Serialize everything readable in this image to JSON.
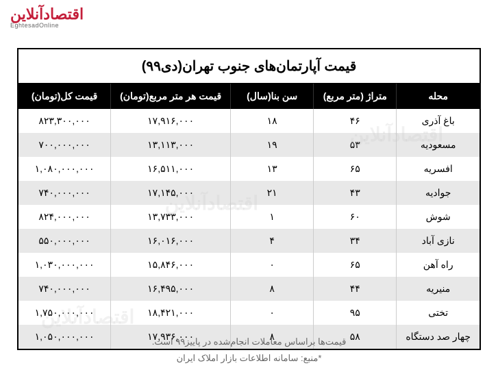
{
  "logo": {
    "main": "اقتصادآنلاین",
    "sub": "EghtesadOnline"
  },
  "watermark": "اقتصادآنلاین",
  "table": {
    "title": "قیمت آپارتمان‌های جنوب تهران(دی۹۹)",
    "columns": [
      "محله",
      "متراژ (متر مربع)",
      "سن بنا(سال)",
      "قیمت هر متر مربع(تومان)",
      "قیمت کل(تومان)"
    ],
    "rows": [
      [
        "باغ آذری",
        "۴۶",
        "۱۸",
        "۱۷,۹۱۶,۰۰۰",
        "۸۲۳,۳۰۰,۰۰۰"
      ],
      [
        "مسعودیه",
        "۵۳",
        "۱۹",
        "۱۳,۱۱۳,۰۰۰",
        "۷۰۰,۰۰۰,۰۰۰"
      ],
      [
        "افسریه",
        "۶۵",
        "۱۳",
        "۱۶,۵۱۱,۰۰۰",
        "۱,۰۸۰,۰۰۰,۰۰۰"
      ],
      [
        "جوادیه",
        "۴۳",
        "۲۱",
        "۱۷,۱۴۵,۰۰۰",
        "۷۴۰,۰۰۰,۰۰۰"
      ],
      [
        "شوش",
        "۶۰",
        "۱",
        "۱۳,۷۳۳,۰۰۰",
        "۸۲۴,۰۰۰,۰۰۰"
      ],
      [
        "نازی آباد",
        "۳۴",
        "۴",
        "۱۶,۰۱۶,۰۰۰",
        "۵۵۰,۰۰۰,۰۰۰"
      ],
      [
        "راه آهن",
        "۶۵",
        "۰",
        "۱۵,۸۴۶,۰۰۰",
        "۱,۰۳۰,۰۰۰,۰۰۰"
      ],
      [
        "منیریه",
        "۴۴",
        "۸",
        "۱۶,۴۹۵,۰۰۰",
        "۷۴۰,۰۰۰,۰۰۰"
      ],
      [
        "تختی",
        "۹۵",
        "۰",
        "۱۸,۴۲۱,۰۰۰",
        "۱,۷۵۰,۰۰۰,۰۰۰"
      ],
      [
        "چهار صد دستگاه",
        "۵۸",
        "۸",
        "۱۷,۹۳۶,۰۰۰",
        "۱,۰۵۰,۰۰۰,۰۰۰"
      ]
    ]
  },
  "footer": {
    "note1": "قیمت‌ها براساس معاملات انجام‌شده در پاییز۹۹ است.",
    "note2": "*منبع: سامانه اطلاعات بازار املاک ایران"
  },
  "styling": {
    "header_bg": "#000000",
    "header_text": "#ffffff",
    "row_even_bg": "#e8e8e8",
    "row_odd_bg": "#ffffff",
    "border_color": "#000000",
    "logo_color": "#c41e3a",
    "footer_color": "#666666",
    "title_fontsize": 20,
    "header_fontsize": 14,
    "cell_fontsize": 14,
    "footer_fontsize": 13
  }
}
